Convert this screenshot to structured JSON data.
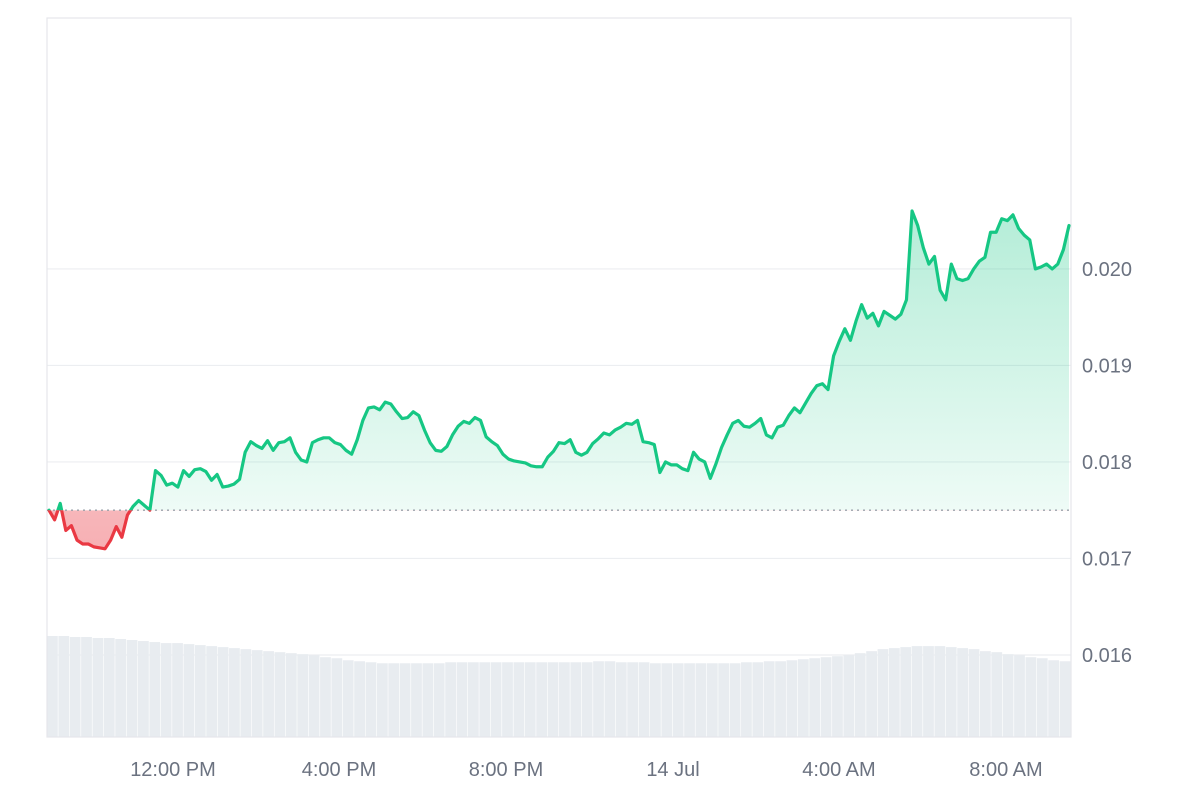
{
  "chart_data": {
    "type": "area",
    "title": "",
    "xlabel": "",
    "ylabel": "",
    "baseline": 0.0175,
    "ylim": [
      0.01515,
      0.0226
    ],
    "y_ticks": [
      {
        "value": 0.016,
        "label": "0.016"
      },
      {
        "value": 0.017,
        "label": "0.017"
      },
      {
        "value": 0.018,
        "label": "0.018"
      },
      {
        "value": 0.019,
        "label": "0.019"
      },
      {
        "value": 0.02,
        "label": "0.020"
      }
    ],
    "x_ticks": [
      "12:00 PM",
      "4:00 PM",
      "8:00 PM",
      "14 Jul",
      "4:00 AM",
      "8:00 AM"
    ],
    "colors": {
      "up": "#16c784",
      "down": "#ea3943",
      "up_fill": "#16c784",
      "down_fill": "#ea3943",
      "volume": "#e8ecf0",
      "grid": "#eceef1",
      "baseline": "#9aa1aa",
      "border": "#e5e7eb"
    },
    "price": [
      0.0175,
      0.0174,
      0.01757,
      0.01729,
      0.01734,
      0.01719,
      0.01715,
      0.01715,
      0.01712,
      0.01711,
      0.0171,
      0.01719,
      0.01733,
      0.01722,
      0.01745,
      0.01754,
      0.0176,
      0.01755,
      0.0175,
      0.01791,
      0.01786,
      0.01776,
      0.01778,
      0.01774,
      0.01791,
      0.01785,
      0.01792,
      0.01793,
      0.0179,
      0.01781,
      0.01787,
      0.01774,
      0.01775,
      0.01777,
      0.01782,
      0.0181,
      0.01821,
      0.01817,
      0.01814,
      0.01822,
      0.01812,
      0.0182,
      0.01821,
      0.01825,
      0.0181,
      0.01802,
      0.018,
      0.0182,
      0.01823,
      0.01825,
      0.01825,
      0.0182,
      0.01818,
      0.01812,
      0.01808,
      0.01823,
      0.01843,
      0.01856,
      0.01857,
      0.01854,
      0.01862,
      0.0186,
      0.01852,
      0.01845,
      0.01846,
      0.01852,
      0.01848,
      0.01833,
      0.0182,
      0.01812,
      0.01811,
      0.01816,
      0.01828,
      0.01837,
      0.01842,
      0.0184,
      0.01846,
      0.01843,
      0.01826,
      0.01821,
      0.01817,
      0.01808,
      0.01803,
      0.01801,
      0.018,
      0.01799,
      0.01796,
      0.01795,
      0.01795,
      0.01805,
      0.01811,
      0.0182,
      0.01819,
      0.01823,
      0.0181,
      0.01807,
      0.0181,
      0.01819,
      0.01824,
      0.0183,
      0.01828,
      0.01833,
      0.01836,
      0.0184,
      0.01839,
      0.01843,
      0.01821,
      0.0182,
      0.01818,
      0.01789,
      0.018,
      0.01797,
      0.01797,
      0.01793,
      0.01791,
      0.0181,
      0.01803,
      0.018,
      0.01783,
      0.01798,
      0.01815,
      0.01828,
      0.0184,
      0.01843,
      0.01837,
      0.01836,
      0.0184,
      0.01845,
      0.01828,
      0.01825,
      0.01836,
      0.01838,
      0.01848,
      0.01856,
      0.01851,
      0.01861,
      0.01871,
      0.01879,
      0.01881,
      0.01875,
      0.0191,
      0.01925,
      0.01938,
      0.01926,
      0.01946,
      0.01963,
      0.01949,
      0.01954,
      0.01941,
      0.01956,
      0.01952,
      0.01948,
      0.01953,
      0.01968,
      0.0206,
      0.02045,
      0.02022,
      0.02005,
      0.02013,
      0.01978,
      0.01968,
      0.02005,
      0.0199,
      0.01988,
      0.0199,
      0.02,
      0.02008,
      0.02012,
      0.02038,
      0.02038,
      0.02052,
      0.0205,
      0.02056,
      0.02042,
      0.02035,
      0.0203,
      0.02,
      0.02002,
      0.02005,
      0.02,
      0.02005,
      0.0202,
      0.02045
    ],
    "volume": [
      1.0,
      1.0,
      0.99,
      0.99,
      0.98,
      0.98,
      0.97,
      0.96,
      0.95,
      0.94,
      0.93,
      0.93,
      0.92,
      0.91,
      0.9,
      0.89,
      0.88,
      0.87,
      0.86,
      0.85,
      0.84,
      0.83,
      0.82,
      0.81,
      0.79,
      0.78,
      0.76,
      0.75,
      0.74,
      0.73,
      0.73,
      0.73,
      0.73,
      0.73,
      0.73,
      0.74,
      0.74,
      0.74,
      0.74,
      0.74,
      0.74,
      0.74,
      0.74,
      0.74,
      0.74,
      0.74,
      0.74,
      0.74,
      0.75,
      0.75,
      0.74,
      0.74,
      0.74,
      0.73,
      0.73,
      0.73,
      0.73,
      0.73,
      0.73,
      0.73,
      0.73,
      0.74,
      0.74,
      0.75,
      0.75,
      0.76,
      0.77,
      0.78,
      0.79,
      0.8,
      0.81,
      0.83,
      0.85,
      0.87,
      0.88,
      0.89,
      0.9,
      0.9,
      0.9,
      0.89,
      0.88,
      0.87,
      0.85,
      0.84,
      0.82,
      0.81,
      0.79,
      0.78,
      0.76,
      0.75
    ],
    "volume_peak": 1.0
  }
}
